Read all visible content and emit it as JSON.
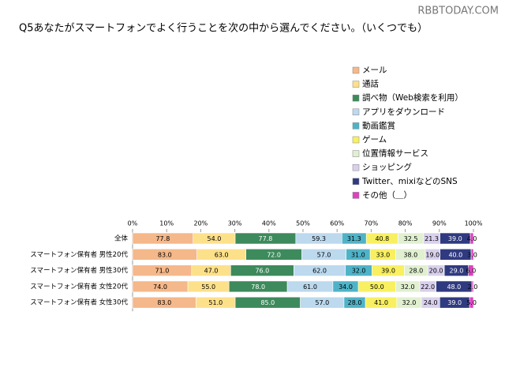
{
  "watermark": "RBBTODAY.COM",
  "chart_data": {
    "type": "bar",
    "orientation": "horizontal",
    "stacked_percent": true,
    "title": "Q5あなたがスマートフォンでよく行うことを次の中から選んでください。（いくつでも）",
    "categories": [
      "全体",
      "スマートフォン保有者 男性20代",
      "スマートフォン保有者 男性30代",
      "スマートフォン保有者 女性20代",
      "スマートフォン保有者 女性30代"
    ],
    "xlim": [
      0,
      100
    ],
    "xticks": [
      {
        "value": 0,
        "label": "0%"
      },
      {
        "value": 10,
        "label": "10%"
      },
      {
        "value": 20,
        "label": "20%"
      },
      {
        "value": 30,
        "label": "30%"
      },
      {
        "value": 40,
        "label": "40%"
      },
      {
        "value": 50,
        "label": "50%"
      },
      {
        "value": 60,
        "label": "60%"
      },
      {
        "value": 70,
        "label": "70%"
      },
      {
        "value": 80,
        "label": "80%"
      },
      {
        "value": 90,
        "label": "90%"
      },
      {
        "value": 100,
        "label": "100%"
      }
    ],
    "legend": "right",
    "series": [
      {
        "name": "メール",
        "color": "#f5b88a",
        "values": [
          77.8,
          83,
          71,
          74,
          83
        ],
        "value_labels": [
          "77.8",
          "83.0",
          "71.0",
          "74.0",
          "83.0"
        ]
      },
      {
        "name": "通話",
        "color": "#fde08a",
        "values": [
          54,
          63,
          47,
          55,
          51
        ],
        "value_labels": [
          "54.0",
          "63.0",
          "47.0",
          "55.0",
          "51.0"
        ]
      },
      {
        "name": "調べ物（Web検索を利用）",
        "color": "#3d8a5c",
        "values": [
          77.8,
          72,
          76,
          78,
          85
        ],
        "value_labels": [
          "77.8",
          "72.0",
          "76.0",
          "78.0",
          "85.0"
        ]
      },
      {
        "name": "アプリをダウンロード",
        "color": "#bcd9ee",
        "values": [
          59.3,
          57,
          62,
          61,
          57
        ],
        "value_labels": [
          "59.3",
          "57.0",
          "62.0",
          "61.0",
          "57.0"
        ]
      },
      {
        "name": "動画鑑賞",
        "color": "#4fb3c8",
        "values": [
          31.3,
          31,
          32,
          34,
          28
        ],
        "value_labels": [
          "31.3",
          "31.0",
          "32.0",
          "34.0",
          "28.0"
        ]
      },
      {
        "name": "ゲーム",
        "color": "#f8f060",
        "values": [
          40.8,
          33,
          39,
          50,
          41
        ],
        "value_labels": [
          "40.8",
          "33.0",
          "39.0",
          "50.0",
          "41.0"
        ]
      },
      {
        "name": "位置情報サービス",
        "color": "#e0f0d0",
        "values": [
          32.5,
          38,
          28,
          32,
          32
        ],
        "value_labels": [
          "32.5",
          "38.0",
          "28.0",
          "32.0",
          "32.0"
        ]
      },
      {
        "name": "ショッピング",
        "color": "#d8d0ec",
        "values": [
          21.3,
          19,
          20,
          22,
          24
        ],
        "value_labels": [
          "21.3",
          "19.0",
          "20.0",
          "22.0",
          "24.0"
        ]
      },
      {
        "name": "Twitter、mixiなどのSNS",
        "color": "#303a80",
        "values": [
          39,
          40,
          29,
          48,
          39
        ],
        "value_labels": [
          "39.0",
          "40.0",
          "29.0",
          "48.0",
          "39.0"
        ]
      },
      {
        "name": "その他（＿）",
        "color": "#e040c0",
        "values": [
          4,
          3,
          6,
          2,
          5
        ],
        "value_labels": [
          "4.0",
          "3.0",
          "6.0",
          "2.0",
          "5.0"
        ]
      }
    ]
  }
}
